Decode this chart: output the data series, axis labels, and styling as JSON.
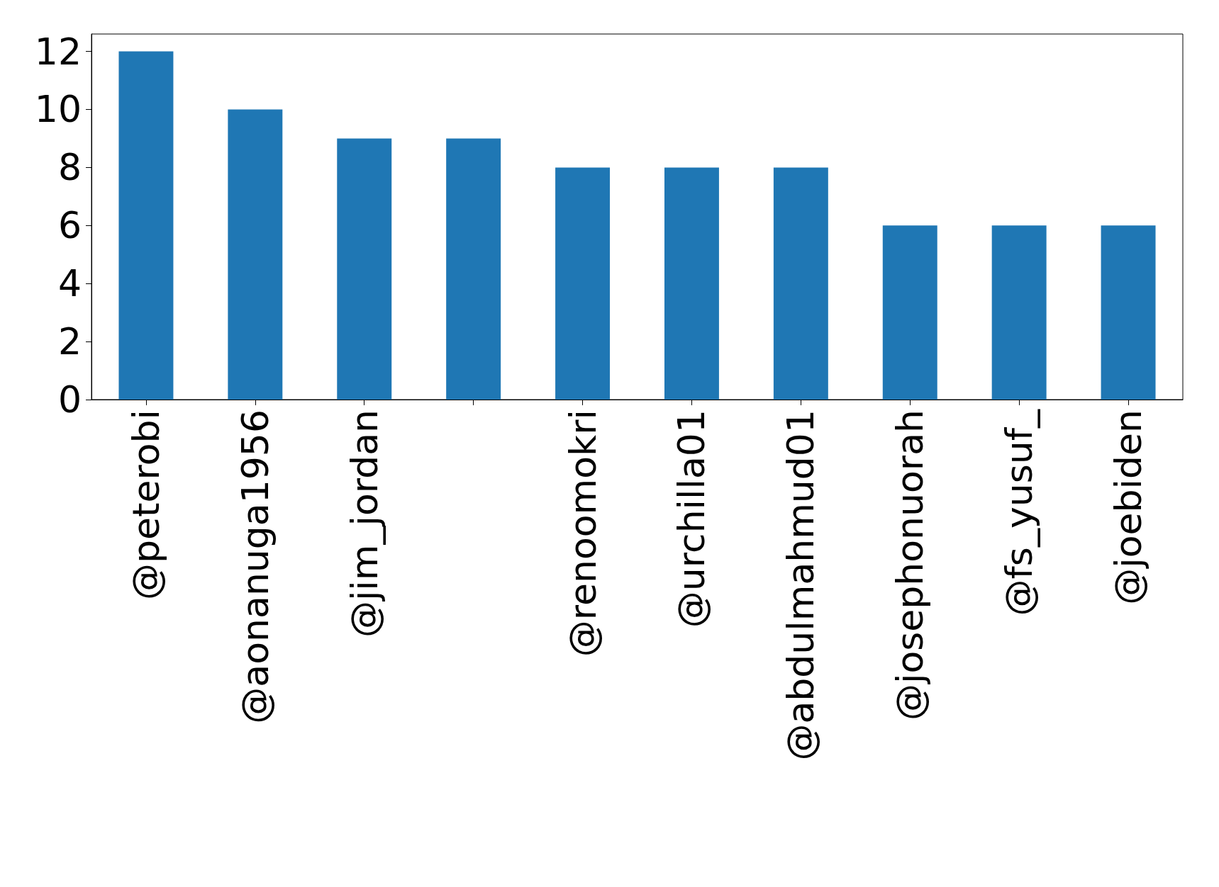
{
  "chart_data": {
    "type": "bar",
    "categories": [
      "@peterobi",
      "@aonanuga1956",
      "@jim_jordan",
      null,
      "@renoomokri",
      "@urchilla01",
      "@abdulmahmud01",
      "@josephonuorah",
      "@fs_yusuf_",
      "@joebiden"
    ],
    "values": [
      12,
      10,
      9,
      9,
      8,
      8,
      8,
      6,
      6,
      6
    ],
    "color": "#1f77b4",
    "ylim": [
      0,
      12.6
    ],
    "yticks": [
      0,
      2,
      4,
      6,
      8,
      10,
      12
    ],
    "grid": false
  }
}
